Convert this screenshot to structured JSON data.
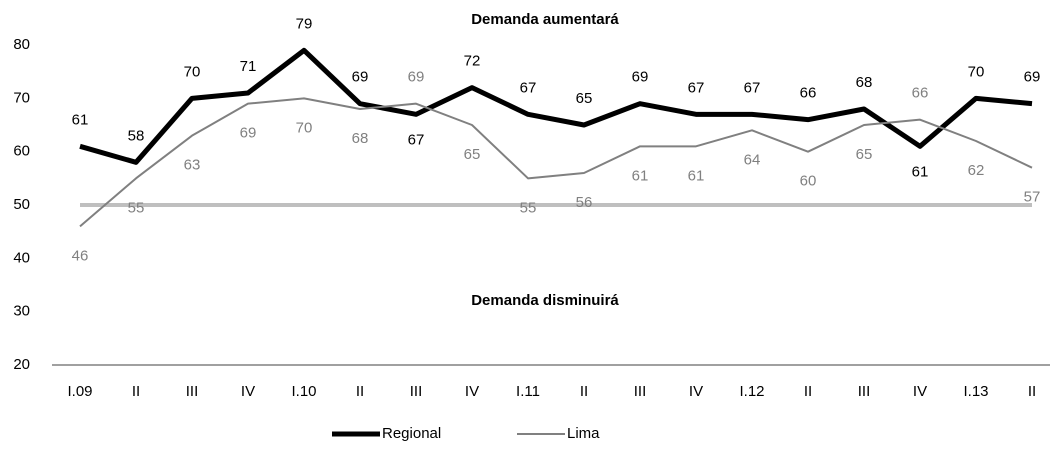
{
  "chart_data": {
    "type": "line",
    "annotations": [
      "Demanda aumentará",
      "Demanda disminuirá"
    ],
    "categories": [
      "I.09",
      "II",
      "III",
      "IV",
      "I.10",
      "II",
      "III",
      "IV",
      "I.11",
      "II",
      "III",
      "IV",
      "I.12",
      "II",
      "III",
      "IV",
      "I.13",
      "II"
    ],
    "series": [
      {
        "name": "Regional",
        "color": "#000000",
        "values": [
          61,
          58,
          70,
          71,
          79,
          69,
          67,
          72,
          67,
          65,
          69,
          67,
          67,
          66,
          68,
          61,
          70,
          69
        ]
      },
      {
        "name": "Lima",
        "color": "#808080",
        "values": [
          46,
          55,
          63,
          69,
          70,
          68,
          69,
          65,
          55,
          56,
          61,
          61,
          64,
          60,
          65,
          66,
          62,
          57
        ]
      }
    ],
    "reference_value": 50,
    "reference_color": "#bfbfbf",
    "ylim": [
      20,
      80
    ],
    "yticks": [
      20,
      30,
      40,
      50,
      60,
      70,
      80
    ],
    "grid": false,
    "legend": "bottom"
  }
}
